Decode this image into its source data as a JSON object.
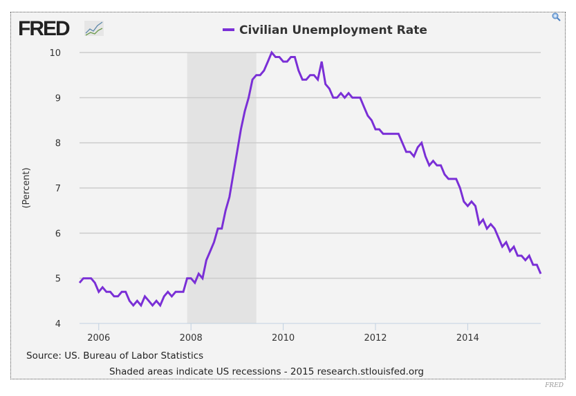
{
  "logo": {
    "text": "FRED"
  },
  "zoom_icon": "zoom-in-icon",
  "credit": "FRED",
  "colors": {
    "series": "#7a2fd6",
    "recession": "#e3e3e3",
    "background": "#f3f3f3",
    "grid": "#cccccc"
  },
  "chart_data": {
    "type": "line",
    "title": "Civilian Unemployment Rate",
    "ylabel": "(Percent)",
    "xlabel": "",
    "ylim": [
      4,
      10
    ],
    "yticks": [
      "4",
      "5",
      "6",
      "7",
      "8",
      "9",
      "10"
    ],
    "xticks": [
      "2006",
      "2008",
      "2010",
      "2012",
      "2014"
    ],
    "x_start": "2005-08",
    "x_end": "2015-08",
    "frequency": "monthly",
    "legend": "top-center",
    "grid": true,
    "recessions": [
      {
        "start": "2007-12",
        "end": "2009-06"
      }
    ],
    "series": [
      {
        "name": "Civilian Unemployment Rate",
        "values": [
          4.9,
          5.0,
          5.0,
          5.0,
          4.9,
          4.7,
          4.8,
          4.7,
          4.7,
          4.6,
          4.6,
          4.7,
          4.7,
          4.5,
          4.4,
          4.5,
          4.4,
          4.6,
          4.5,
          4.4,
          4.5,
          4.4,
          4.6,
          4.7,
          4.6,
          4.7,
          4.7,
          4.7,
          5.0,
          5.0,
          4.9,
          5.1,
          5.0,
          5.4,
          5.6,
          5.8,
          6.1,
          6.1,
          6.5,
          6.8,
          7.3,
          7.8,
          8.3,
          8.7,
          9.0,
          9.4,
          9.5,
          9.5,
          9.6,
          9.8,
          10.0,
          9.9,
          9.9,
          9.8,
          9.8,
          9.9,
          9.9,
          9.6,
          9.4,
          9.4,
          9.5,
          9.5,
          9.4,
          9.8,
          9.3,
          9.2,
          9.0,
          9.0,
          9.1,
          9.0,
          9.1,
          9.0,
          9.0,
          9.0,
          8.8,
          8.6,
          8.5,
          8.3,
          8.3,
          8.2,
          8.2,
          8.2,
          8.2,
          8.2,
          8.0,
          7.8,
          7.8,
          7.7,
          7.9,
          8.0,
          7.7,
          7.5,
          7.6,
          7.5,
          7.5,
          7.3,
          7.2,
          7.2,
          7.2,
          7.0,
          6.7,
          6.6,
          6.7,
          6.6,
          6.2,
          6.3,
          6.1,
          6.2,
          6.1,
          5.9,
          5.7,
          5.8,
          5.6,
          5.7,
          5.5,
          5.5,
          5.4,
          5.5,
          5.3,
          5.3,
          5.1
        ]
      }
    ],
    "source": "Source: US. Bureau of Labor Statistics",
    "note": "Shaded areas indicate US recessions - 2015 research.stlouisfed.org"
  }
}
